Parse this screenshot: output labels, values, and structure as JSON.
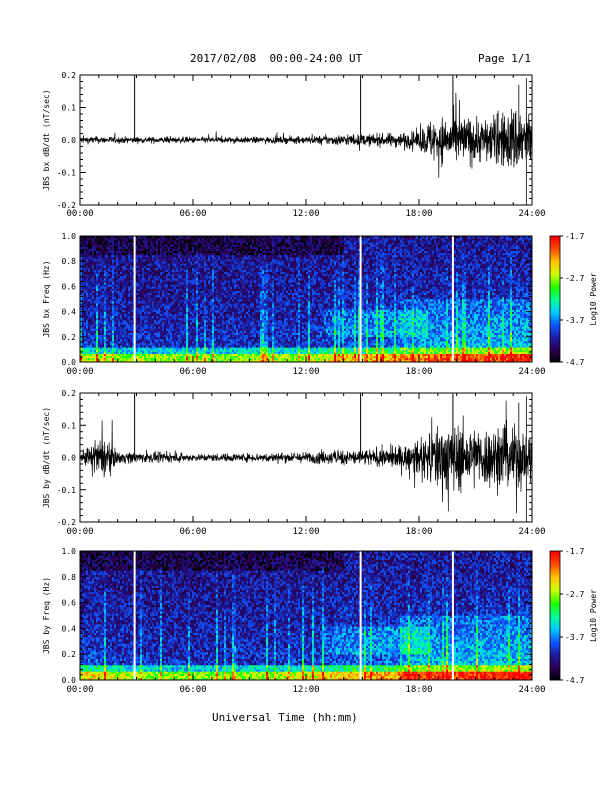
{
  "header": {
    "title": "2017/02/08  00:00-24:00 UT",
    "page": "Page 1/1"
  },
  "footer": {
    "xlabel": "Universal Time (hh:mm)"
  },
  "colors": {
    "trace": "#000000",
    "background": "#ffffff",
    "colormap": [
      "#000000",
      "#2a0050",
      "#1c1c9e",
      "#0f55ff",
      "#00c8ff",
      "#00ff96",
      "#22ff00",
      "#c8ff00",
      "#ffc800",
      "#ff5000",
      "#ff0000"
    ]
  },
  "chart_data": [
    {
      "type": "line",
      "ylabel": "JBS bx dB/dt (nT/sec)",
      "xlim": [
        0,
        24
      ],
      "ylim": [
        -0.2,
        0.2
      ],
      "xticks": [
        "00:00",
        "06:00",
        "12:00",
        "18:00",
        "24:00"
      ],
      "yticks": [
        "-0.2",
        "-0.1",
        "0.0",
        "0.1",
        "0.2"
      ],
      "spikes_hours": [
        2.9,
        14.9,
        19.8
      ],
      "envelope": {
        "hours": [
          0,
          3,
          6,
          9,
          12,
          14,
          16,
          18,
          18.6,
          20,
          22,
          23.2,
          24
        ],
        "amplitude": [
          0.012,
          0.01,
          0.01,
          0.01,
          0.012,
          0.018,
          0.02,
          0.03,
          0.07,
          0.08,
          0.075,
          0.12,
          0.09
        ]
      }
    },
    {
      "type": "heatmap",
      "ylabel": "JBS bx Freq (Hz)",
      "xlim": [
        0,
        24
      ],
      "ylim": [
        0,
        1
      ],
      "xticks": [
        "00:00",
        "06:00",
        "12:00",
        "18:00",
        "24:00"
      ],
      "yticks": [
        "0.0",
        "0.2",
        "0.4",
        "0.6",
        "0.8",
        "1.0"
      ],
      "colorbar": {
        "label": "Log10 Power",
        "min": -4.7,
        "max": -1.7,
        "ticks": [
          "-1.7",
          "-2.7",
          "-3.7",
          "-4.7"
        ]
      },
      "gaps_hours": [
        2.9,
        14.9,
        19.8
      ],
      "activity": {
        "hours": [
          0,
          4,
          8,
          12,
          14,
          16,
          18,
          20,
          22,
          24
        ],
        "level": [
          0.3,
          0.25,
          0.25,
          0.3,
          0.45,
          0.5,
          0.5,
          0.55,
          0.6,
          0.65
        ]
      }
    },
    {
      "type": "line",
      "ylabel": "JBS by dB/dt (nT/sec)",
      "xlim": [
        0,
        24
      ],
      "ylim": [
        -0.2,
        0.2
      ],
      "xticks": [
        "00:00",
        "06:00",
        "12:00",
        "18:00",
        "24:00"
      ],
      "yticks": [
        "-0.2",
        "-0.1",
        "0.0",
        "0.1",
        "0.2"
      ],
      "spikes_hours": [
        2.9,
        14.9,
        19.8
      ],
      "envelope": {
        "hours": [
          0,
          0.8,
          1.3,
          2,
          6,
          9,
          12,
          14,
          16,
          18,
          19,
          21,
          23,
          24
        ],
        "amplitude": [
          0.015,
          0.05,
          0.07,
          0.02,
          0.012,
          0.014,
          0.018,
          0.025,
          0.03,
          0.05,
          0.12,
          0.1,
          0.11,
          0.09
        ]
      }
    },
    {
      "type": "heatmap",
      "ylabel": "JBS by Freq (Hz)",
      "xlim": [
        0,
        24
      ],
      "ylim": [
        0,
        1
      ],
      "xticks": [
        "00:00",
        "06:00",
        "12:00",
        "18:00",
        "24:00"
      ],
      "yticks": [
        "0.0",
        "0.2",
        "0.4",
        "0.6",
        "0.8",
        "1.0"
      ],
      "colorbar": {
        "label": "Log10 Power",
        "min": -4.7,
        "max": -1.7,
        "ticks": [
          "-1.7",
          "-2.7",
          "-3.7",
          "-4.7"
        ]
      },
      "gaps_hours": [
        2.9,
        14.9,
        19.8
      ],
      "activity": {
        "hours": [
          0,
          2,
          4,
          8,
          12,
          14,
          16,
          18,
          20,
          22,
          24
        ],
        "level": [
          0.45,
          0.35,
          0.25,
          0.25,
          0.35,
          0.5,
          0.55,
          0.6,
          0.6,
          0.65,
          0.7
        ]
      }
    }
  ]
}
